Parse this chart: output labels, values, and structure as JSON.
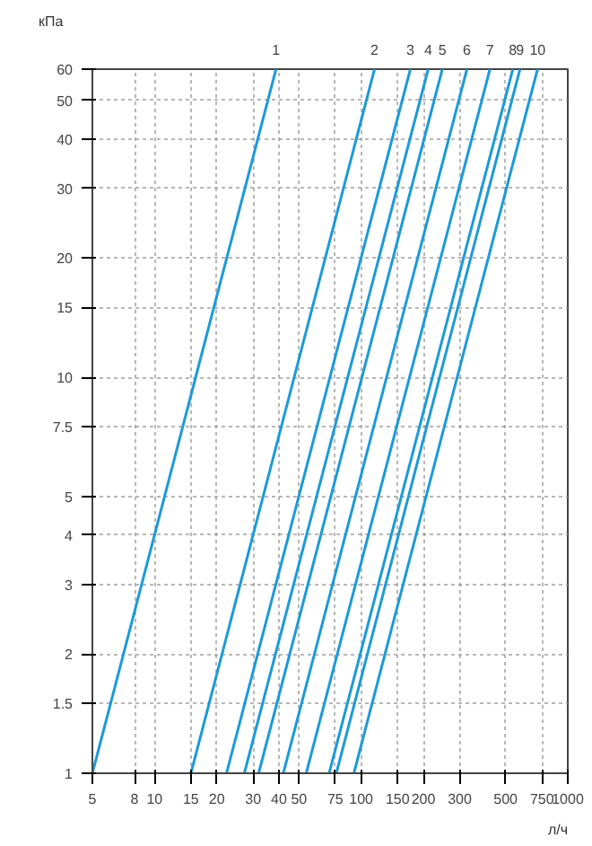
{
  "chart_data": {
    "type": "line",
    "xlabel": "л/ч",
    "ylabel": "кПа",
    "log": "xy",
    "xlim": [
      5,
      1000
    ],
    "ylim": [
      1,
      60
    ],
    "xticks": [
      5,
      8,
      10,
      15,
      20,
      30,
      40,
      50,
      75,
      100,
      150,
      200,
      300,
      500,
      750,
      1000
    ],
    "yticks": [
      1,
      1.5,
      2,
      3,
      4,
      5,
      7.5,
      10,
      15,
      20,
      30,
      40,
      50,
      60
    ],
    "grid": true,
    "marker": "none",
    "line_style": "solid",
    "series": [
      {
        "name": "1",
        "color": "#1e9ad6",
        "x": [
          5,
          38.7
        ],
        "values": [
          1,
          60
        ]
      },
      {
        "name": "2",
        "color": "#1e9ad6",
        "x": [
          15,
          116
        ],
        "values": [
          1,
          60
        ]
      },
      {
        "name": "3",
        "color": "#1e9ad6",
        "x": [
          22.3,
          173
        ],
        "values": [
          1,
          60
        ]
      },
      {
        "name": "4",
        "color": "#1e9ad6",
        "x": [
          27.2,
          211
        ],
        "values": [
          1,
          60
        ]
      },
      {
        "name": "5",
        "color": "#1e9ad6",
        "x": [
          31.9,
          247
        ],
        "values": [
          1,
          60
        ]
      },
      {
        "name": "6",
        "color": "#1e9ad6",
        "x": [
          42,
          325
        ],
        "values": [
          1,
          60
        ]
      },
      {
        "name": "7",
        "color": "#1e9ad6",
        "x": [
          54.2,
          420
        ],
        "values": [
          1,
          60
        ]
      },
      {
        "name": "8",
        "color": "#1e9ad6",
        "x": [
          70,
          542
        ],
        "values": [
          1,
          60
        ]
      },
      {
        "name": "9",
        "color": "#1e9ad6",
        "x": [
          75.8,
          587
        ],
        "values": [
          1,
          60
        ]
      },
      {
        "name": "10",
        "color": "#1e9ad6",
        "x": [
          92.2,
          714
        ],
        "values": [
          1,
          60
        ]
      }
    ]
  }
}
